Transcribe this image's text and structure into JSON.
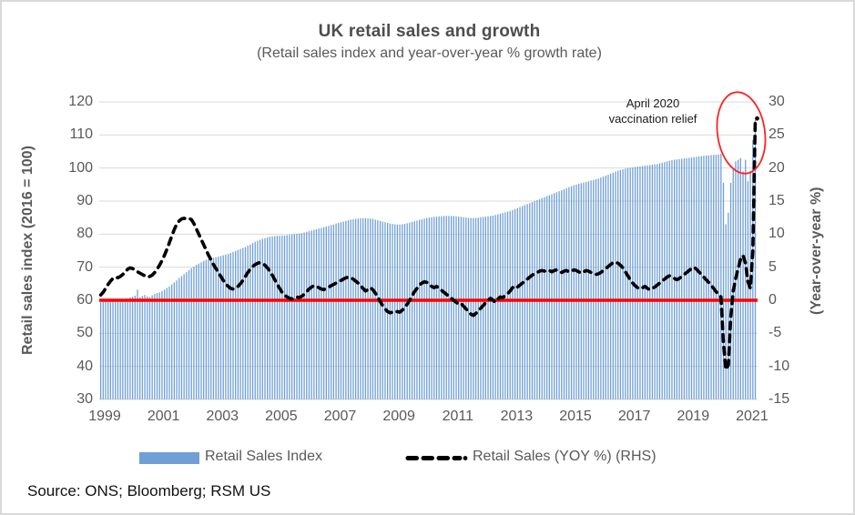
{
  "chart_data": {
    "type": "bar+line combo (monthly)",
    "title": "UK retail sales and growth",
    "subtitle": "(Retail sales index and year-over-year % growth rate)",
    "x_frequency": "monthly",
    "x_range": "Jan 1999 - Apr 2021",
    "x_tick_labels": [
      "1999",
      "2001",
      "2003",
      "2005",
      "2007",
      "2009",
      "2011",
      "2013",
      "2015",
      "2017",
      "2019",
      "2021"
    ],
    "left_axis": {
      "label": "Retail sales index (2016 = 100)",
      "min": 30,
      "max": 120,
      "ticks": [
        120,
        110,
        100,
        90,
        80,
        70,
        60,
        50,
        40,
        30
      ]
    },
    "right_axis": {
      "label": "(Year-over-year %)",
      "min": -15,
      "max": 30,
      "ticks": [
        30,
        25,
        20,
        15,
        10,
        5,
        0,
        -5,
        -10,
        -15
      ]
    },
    "zero_reference_line": {
      "axis": "right",
      "value": 0
    },
    "grid": "horizontal",
    "legend_position": "bottom",
    "annotation": {
      "text_line1": "April 2020",
      "text_line2": "vaccination relief",
      "circled_region": "Mar-Apr 2021 spike"
    },
    "series": [
      {
        "name": "Retail Sales Index",
        "type": "bar",
        "axis": "left",
        "values_by_year": {
          "1999": [
            59.4,
            59.5,
            59.7,
            59.6,
            59.8,
            59.9,
            60.0,
            59.9,
            60.1,
            60.2,
            60.3,
            60.5
          ],
          "2000": [
            60.8,
            61.1,
            61.4,
            63.2,
            60.9,
            61.3,
            61.6,
            61.2,
            61.0,
            61.5,
            61.9,
            62.2
          ],
          "2001": [
            62.4,
            62.8,
            63.2,
            63.7,
            64.2,
            64.8,
            65.4,
            66.0,
            66.7,
            67.3,
            67.9,
            68.5
          ],
          "2002": [
            69.1,
            69.7,
            70.2,
            70.7,
            71.1,
            71.5,
            71.9,
            72.2,
            72.4,
            72.6,
            72.8,
            73.0
          ],
          "2003": [
            73.2,
            73.4,
            73.6,
            73.8,
            74.0,
            74.3,
            74.6,
            74.9,
            75.2,
            75.5,
            75.8,
            76.1
          ],
          "2004": [
            76.5,
            76.9,
            77.3,
            77.7,
            78.0,
            78.3,
            78.6,
            78.8,
            79.0,
            79.2,
            79.3,
            79.4
          ],
          "2005": [
            79.5,
            79.5,
            79.6,
            79.6,
            79.7,
            79.8,
            79.9,
            80.0,
            80.1,
            80.2,
            80.3,
            80.5
          ],
          "2006": [
            80.7,
            80.9,
            81.1,
            81.3,
            81.5,
            81.7,
            81.9,
            82.1,
            82.3,
            82.5,
            82.7,
            82.9
          ],
          "2007": [
            83.2,
            83.4,
            83.6,
            83.8,
            84.0,
            84.2,
            84.4,
            84.5,
            84.6,
            84.7,
            84.8,
            84.8
          ],
          "2008": [
            84.8,
            84.8,
            84.7,
            84.6,
            84.4,
            84.2,
            84.0,
            83.8,
            83.6,
            83.4,
            83.2,
            83.1
          ],
          "2009": [
            83.0,
            82.9,
            82.9,
            83.0,
            83.1,
            83.3,
            83.5,
            83.7,
            83.9,
            84.1,
            84.3,
            84.5
          ],
          "2010": [
            84.7,
            84.9,
            85.0,
            85.1,
            85.2,
            85.3,
            85.4,
            85.4,
            85.5,
            85.5,
            85.5,
            85.5
          ],
          "2011": [
            85.5,
            85.4,
            85.3,
            85.2,
            85.1,
            85.0,
            84.9,
            84.9,
            84.9,
            84.9,
            85.0,
            85.1
          ],
          "2012": [
            85.2,
            85.3,
            85.4,
            85.5,
            85.6,
            85.8,
            86.0,
            86.2,
            86.4,
            86.6,
            86.8,
            87.0
          ],
          "2013": [
            87.3,
            87.6,
            87.9,
            88.2,
            88.5,
            88.8,
            89.1,
            89.4,
            89.7,
            90.0,
            90.3,
            90.6
          ],
          "2014": [
            90.9,
            91.2,
            91.5,
            91.8,
            92.1,
            92.4,
            92.7,
            93.0,
            93.3,
            93.6,
            93.9,
            94.2
          ],
          "2015": [
            94.5,
            94.8,
            95.0,
            95.2,
            95.4,
            95.6,
            95.8,
            96.0,
            96.2,
            96.4,
            96.6,
            96.8
          ],
          "2016": [
            97.1,
            97.4,
            97.7,
            98.0,
            98.3,
            98.6,
            98.9,
            99.2,
            99.4,
            99.6,
            99.8,
            100.0
          ],
          "2017": [
            100.1,
            100.2,
            100.3,
            100.4,
            100.5,
            100.6,
            100.7,
            100.8,
            100.9,
            101.0,
            101.1,
            101.2
          ],
          "2018": [
            101.4,
            101.6,
            101.8,
            102.0,
            102.2,
            102.4,
            102.5,
            102.6,
            102.7,
            102.8,
            102.9,
            103.0
          ],
          "2019": [
            103.1,
            103.2,
            103.3,
            103.4,
            103.5,
            103.6,
            103.7,
            103.8,
            103.8,
            103.9,
            104.0,
            104.0
          ],
          "2020": [
            104.1,
            104.3,
            95.5,
            83.0,
            86.5,
            95.5,
            100.0,
            102.0,
            102.5,
            103.0,
            99.0,
            102.5
          ],
          "2021": [
            96.0,
            99.0,
            108.5,
            114.5
          ]
        }
      },
      {
        "name": "Retail Sales (YOY %) (RHS)",
        "type": "dashed-line",
        "axis": "right",
        "values_by_year": {
          "1999": [
            0.8,
            1.2,
            1.8,
            2.4,
            2.9,
            3.3,
            3.5,
            3.4,
            3.6,
            3.9,
            4.3,
            4.7
          ],
          "2000": [
            4.9,
            4.8,
            4.6,
            4.3,
            4.1,
            3.9,
            3.7,
            3.5,
            3.6,
            3.8,
            4.2,
            4.7
          ],
          "2001": [
            5.3,
            6.0,
            6.8,
            7.7,
            8.7,
            9.7,
            10.7,
            11.5,
            12.0,
            12.3,
            12.4,
            12.3
          ],
          "2002": [
            12.4,
            12.2,
            11.6,
            10.8,
            10.0,
            9.2,
            8.4,
            7.6,
            6.8,
            6.1,
            5.4,
            4.8
          ],
          "2003": [
            4.2,
            3.6,
            3.0,
            2.5,
            2.1,
            1.8,
            1.7,
            1.8,
            2.1,
            2.5,
            3.0,
            3.6
          ],
          "2004": [
            4.2,
            4.7,
            5.1,
            5.4,
            5.6,
            5.7,
            5.6,
            5.3,
            4.9,
            4.4,
            3.8,
            3.1
          ],
          "2005": [
            2.4,
            1.8,
            1.2,
            0.8,
            0.5,
            0.3,
            0.2,
            0.3,
            0.5,
            0.4,
            0.6,
            0.9
          ],
          "2006": [
            1.3,
            1.7,
            2.0,
            2.2,
            2.1,
            1.9,
            1.7,
            1.6,
            1.8,
            2.0,
            2.2,
            2.4
          ],
          "2007": [
            2.6,
            2.8,
            3.0,
            3.2,
            3.4,
            3.5,
            3.4,
            3.2,
            2.9,
            2.6,
            2.2,
            1.8
          ],
          "2008": [
            1.4,
            1.6,
            1.9,
            1.6,
            1.1,
            0.5,
            -0.2,
            -0.8,
            -1.3,
            -1.7,
            -1.9,
            -1.8
          ],
          "2009": [
            -1.9,
            -1.7,
            -1.8,
            -1.5,
            -1.1,
            -0.6,
            0.0,
            0.7,
            1.3,
            1.8,
            2.3,
            2.6
          ],
          "2010": [
            2.8,
            2.7,
            2.4,
            2.1,
            1.9,
            2.1,
            1.8,
            1.5,
            1.2,
            0.9,
            0.6,
            0.3
          ],
          "2011": [
            0.0,
            -0.3,
            -0.6,
            -0.5,
            -0.9,
            -1.3,
            -1.7,
            -2.1,
            -2.3,
            -2.0,
            -1.6,
            -1.2
          ],
          "2012": [
            -0.8,
            -0.4,
            0.0,
            0.3,
            0.0,
            -0.3,
            0.2,
            0.5,
            0.4,
            0.7,
            1.0,
            1.4
          ],
          "2013": [
            1.9,
            2.2,
            2.0,
            2.3,
            2.6,
            2.9,
            3.2,
            3.5,
            3.8,
            4.0,
            4.2,
            4.4
          ],
          "2014": [
            4.5,
            4.4,
            4.6,
            4.5,
            4.3,
            4.5,
            4.6,
            4.4,
            4.2,
            4.4,
            4.5,
            4.3
          ],
          "2015": [
            4.4,
            4.6,
            4.5,
            4.3,
            4.1,
            4.3,
            4.5,
            4.4,
            4.2,
            4.0,
            3.9,
            4.0
          ],
          "2016": [
            4.2,
            4.5,
            4.8,
            5.1,
            5.4,
            5.7,
            5.8,
            5.6,
            5.3,
            4.9,
            4.3,
            3.7
          ],
          "2017": [
            3.1,
            2.6,
            2.2,
            1.9,
            1.7,
            1.9,
            2.1,
            1.8,
            1.6,
            1.8,
            2.0,
            2.3
          ],
          "2018": [
            2.6,
            2.9,
            3.2,
            3.5,
            3.7,
            3.5,
            3.3,
            3.1,
            3.3,
            3.6,
            3.9,
            4.2
          ],
          "2019": [
            4.5,
            4.8,
            5.0,
            4.7,
            4.3,
            3.9,
            3.5,
            3.1,
            2.7,
            2.3,
            1.8,
            1.3
          ],
          "2020": [
            0.9,
            0.5,
            -6.5,
            -10.5,
            -9.8,
            -2.5,
            1.4,
            3.3,
            4.8,
            6.2,
            6.8,
            5.6
          ],
          "2021": [
            2.8,
            1.8,
            7.5,
            27.5
          ]
        }
      }
    ]
  },
  "source": "Source: ONS; Bloomberg; RSM US",
  "colors": {
    "bar": "#6F9FD6",
    "line": "#000000",
    "zero_line": "#FF0000",
    "annotation_circle": "#FF2222",
    "grid": "#D9D9D9",
    "text": "#595959"
  }
}
